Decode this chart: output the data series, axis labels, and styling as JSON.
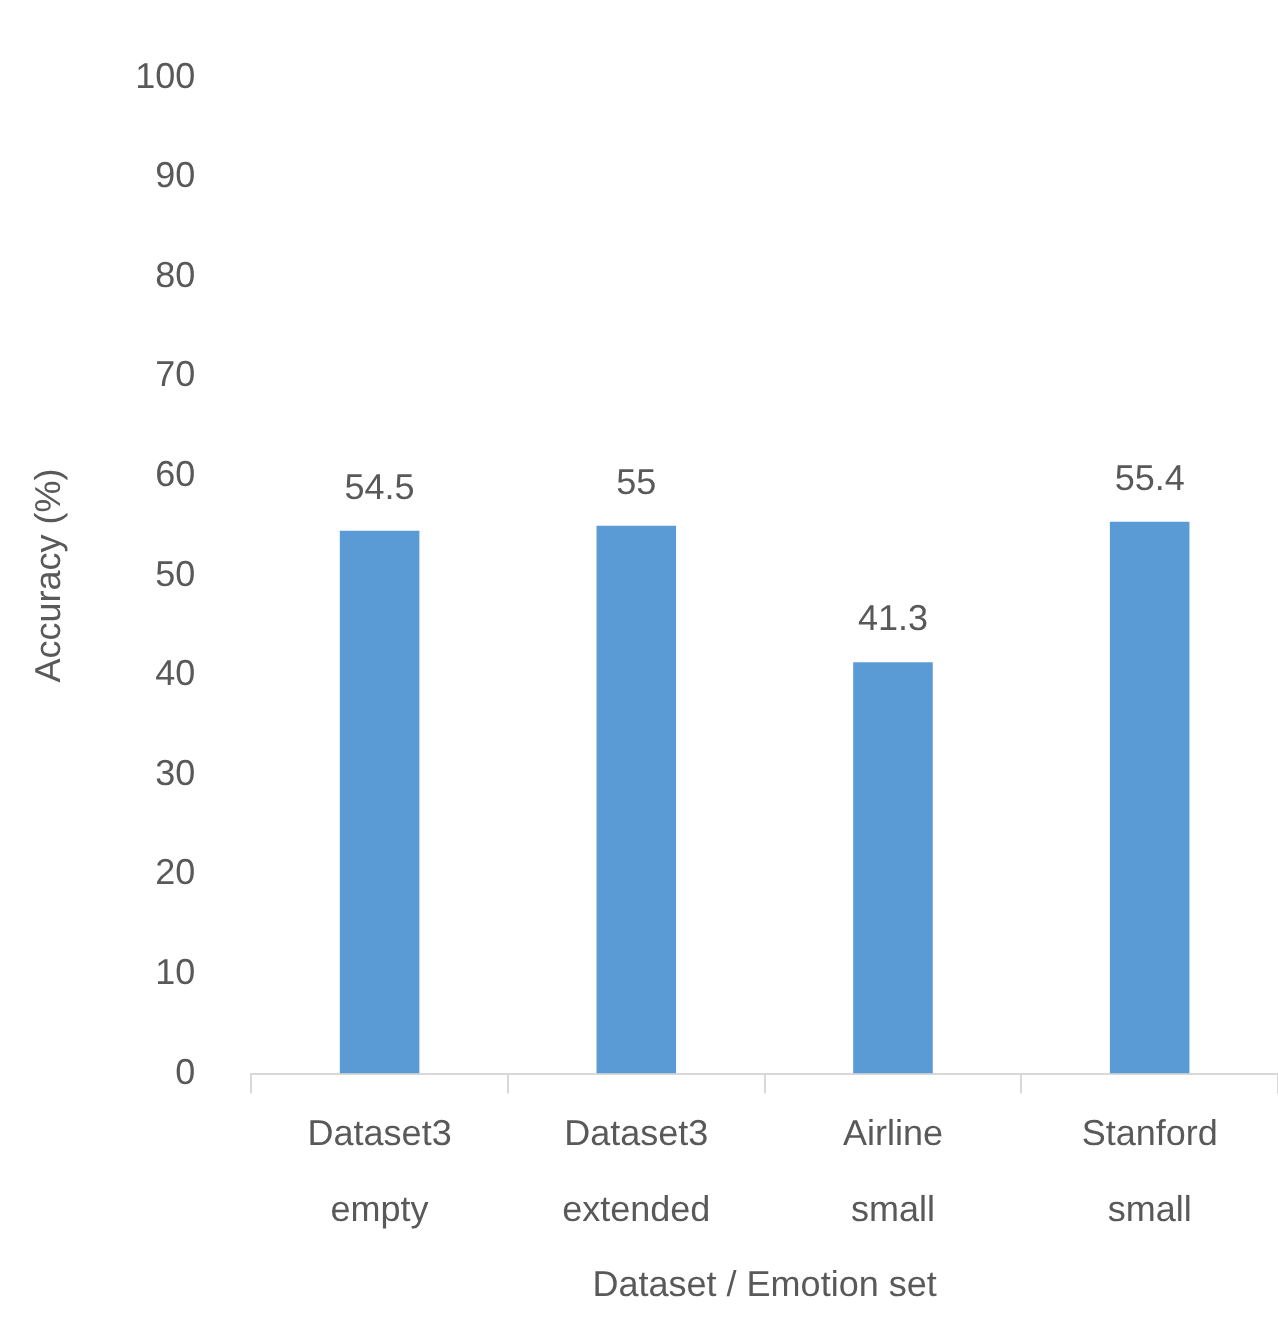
{
  "chart_data": {
    "type": "bar",
    "xlabel": "Dataset / Emotion set",
    "ylabel": "Accuracy (%)",
    "categories": [
      "Dataset3\nempty",
      "Dataset3\nextended",
      "Airline\nsmall",
      "Stanford\nsmall"
    ],
    "values": [
      54.5,
      55,
      41.3,
      55.4
    ],
    "color": "#5b9bd5",
    "ylim": [
      0,
      100
    ],
    "yticks": [
      0,
      10,
      20,
      30,
      40,
      50,
      60,
      70,
      80,
      90,
      100
    ],
    "grid": false,
    "legend": false,
    "data_labels": true
  }
}
